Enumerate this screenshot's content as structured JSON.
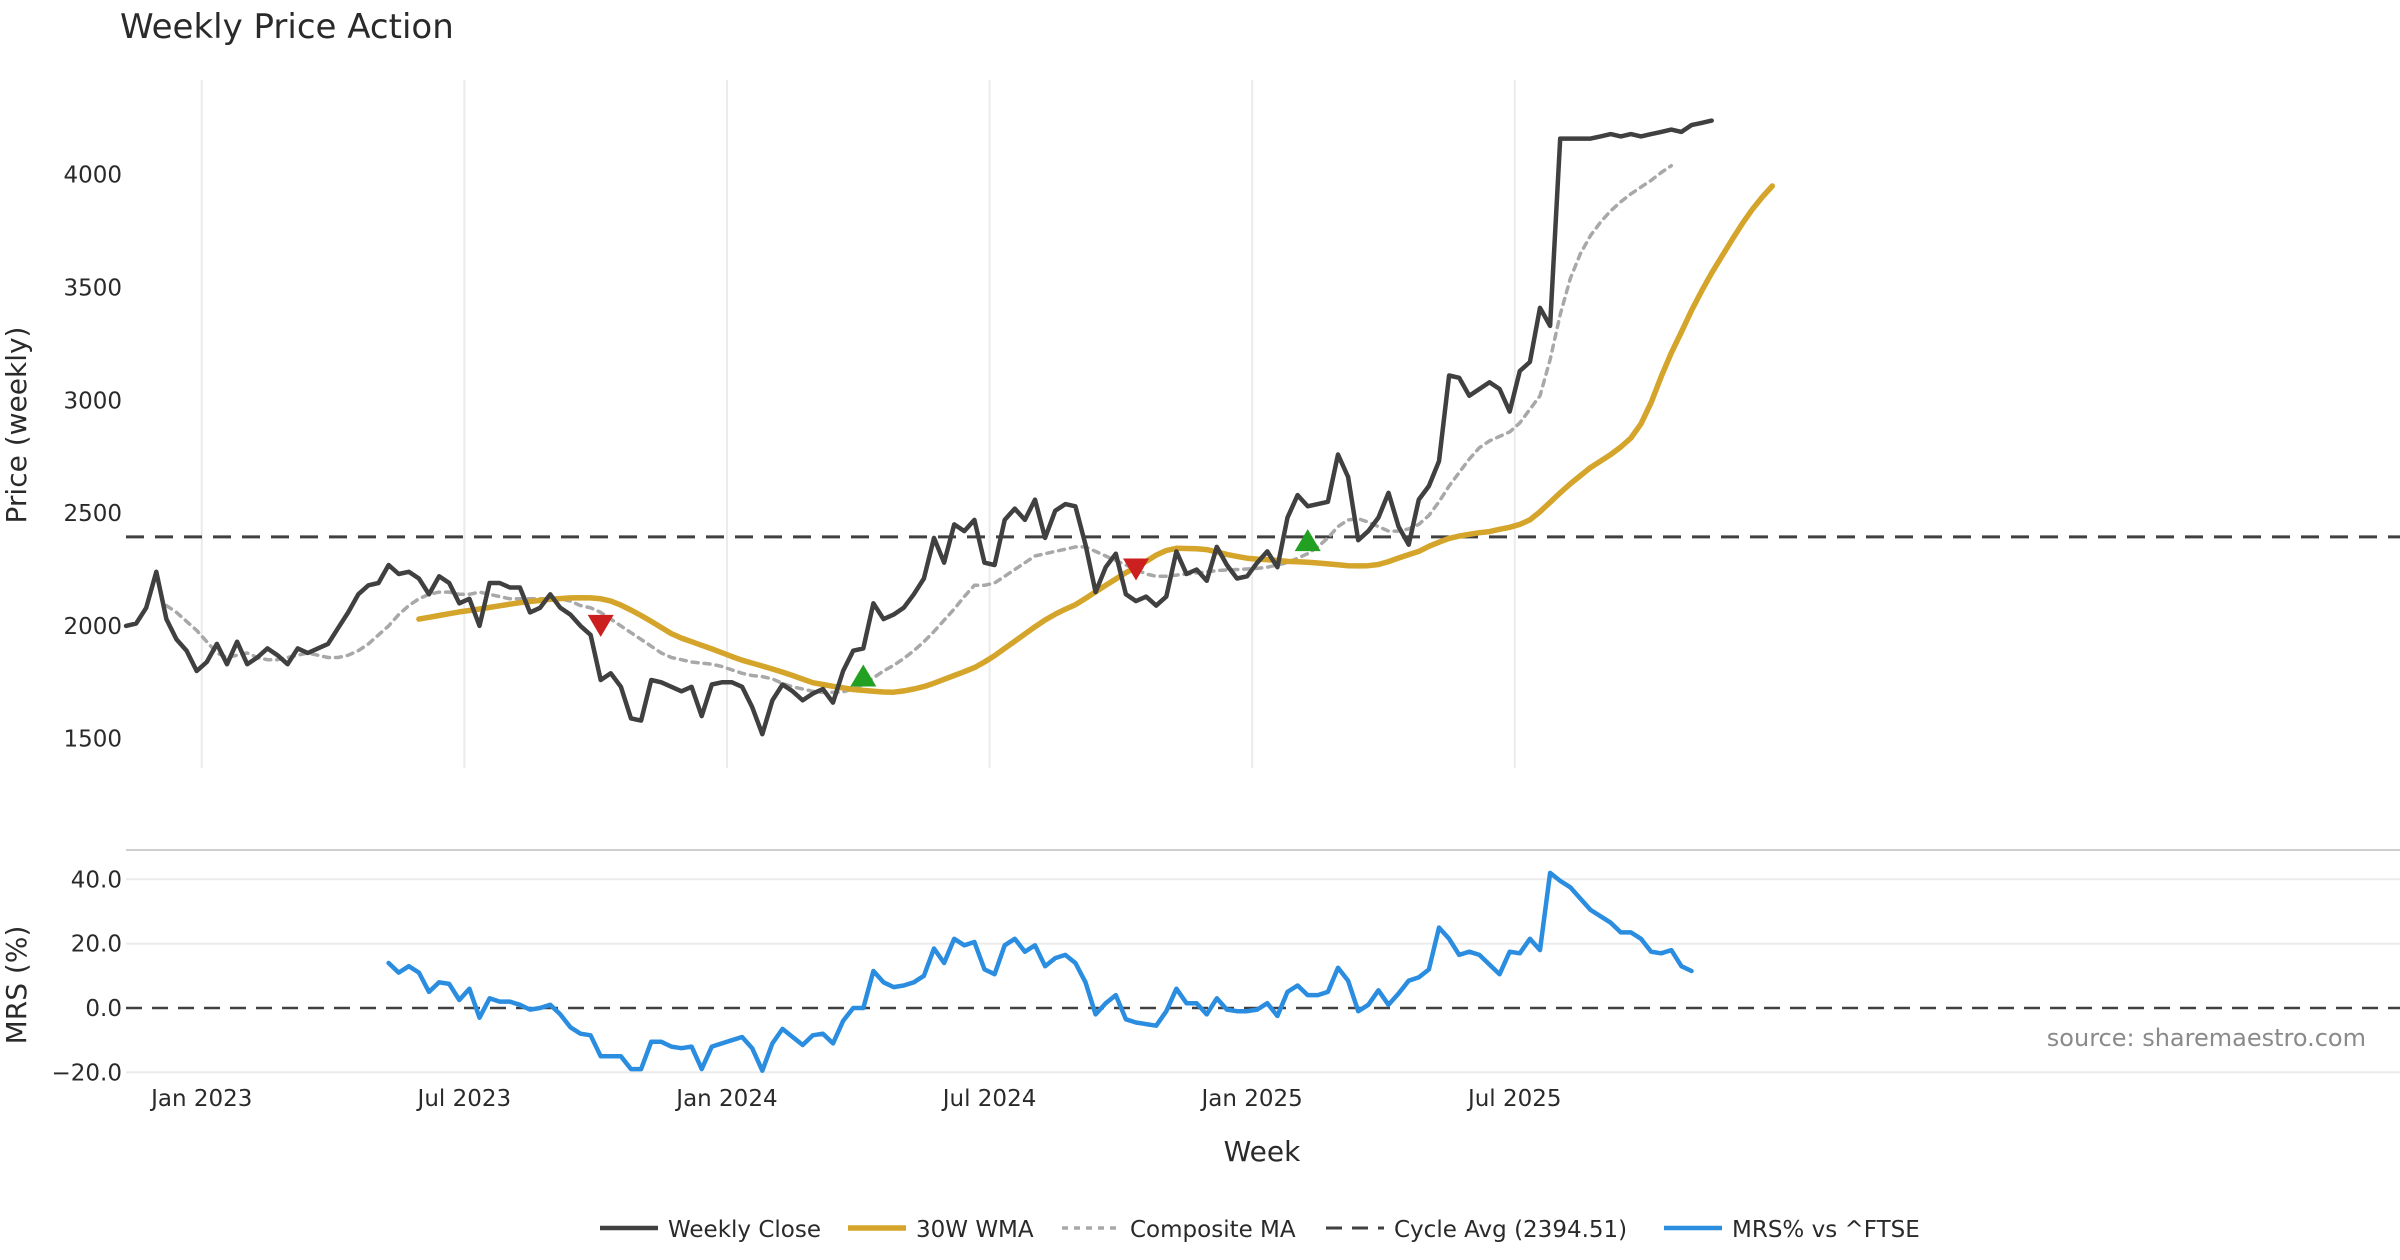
{
  "chart_data": {
    "type": "line",
    "title": "Weekly Price Action",
    "xlabel": "Week",
    "source": "source: sharemaestro.com",
    "x_ticks": [
      "Jan 2023",
      "Jul 2023",
      "Jan 2024",
      "Jul 2024",
      "Jan 2025",
      "Jul 2025"
    ],
    "price_panel": {
      "ylabel": "Price (weekly)",
      "ylim": [
        1370,
        4420
      ],
      "y_ticks": [
        "1500",
        "2000",
        "2500",
        "3000",
        "3500",
        "4000"
      ],
      "y_tick_values": [
        1500,
        2000,
        2500,
        3000,
        3500,
        4000
      ],
      "cycle_avg": 2394.51,
      "series": [
        {
          "name": "Weekly Close",
          "start_week": 0,
          "values": [
            2000,
            2010,
            2080,
            2240,
            2030,
            1940,
            1890,
            1800,
            1840,
            1920,
            1830,
            1930,
            1830,
            1860,
            1900,
            1870,
            1830,
            1900,
            1880,
            1900,
            1920,
            1990,
            2060,
            2140,
            2180,
            2190,
            2270,
            2230,
            2240,
            2210,
            2140,
            2220,
            2190,
            2100,
            2120,
            2000,
            2190,
            2190,
            2170,
            2170,
            2060,
            2080,
            2140,
            2080,
            2050,
            2000,
            1960,
            1760,
            1790,
            1730,
            1590,
            1580,
            1760,
            1750,
            1730,
            1710,
            1730,
            1600,
            1740,
            1750,
            1750,
            1730,
            1640,
            1520,
            1670,
            1740,
            1710,
            1670,
            1700,
            1720,
            1660,
            1800,
            1890,
            1900,
            2100,
            2030,
            2050,
            2080,
            2140,
            2210,
            2390,
            2280,
            2450,
            2420,
            2470,
            2280,
            2270,
            2470,
            2520,
            2470,
            2560,
            2390,
            2510,
            2540,
            2530,
            2360,
            2150,
            2260,
            2320,
            2140,
            2110,
            2130,
            2090,
            2130,
            2330,
            2230,
            2250,
            2200,
            2350,
            2270,
            2210,
            2220,
            2280,
            2330,
            2260,
            2480,
            2580,
            2530,
            2540,
            2550,
            2760,
            2660,
            2380,
            2420,
            2480,
            2590,
            2440,
            2360,
            2560,
            2620,
            2730,
            3110,
            3100,
            3020,
            3050,
            3080,
            3050,
            2950,
            3130,
            3170,
            3410,
            3330,
            4160,
            4160,
            4160,
            4160,
            4170,
            4180,
            4170,
            4180,
            4170,
            4180,
            4190,
            4200,
            4190,
            4220,
            4230,
            4240
          ]
        },
        {
          "name": "30W WMA",
          "start_week": 29,
          "values": [
            2030,
            2038,
            2046,
            2054,
            2062,
            2068,
            2075,
            2082,
            2089,
            2096,
            2103,
            2108,
            2113,
            2118,
            2121,
            2124,
            2125,
            2124,
            2120,
            2110,
            2092,
            2070,
            2046,
            2020,
            1993,
            1966,
            1946,
            1930,
            1914,
            1898,
            1881,
            1864,
            1848,
            1835,
            1822,
            1809,
            1795,
            1780,
            1764,
            1748,
            1740,
            1732,
            1725,
            1718,
            1714,
            1710,
            1707,
            1706,
            1712,
            1720,
            1731,
            1746,
            1763,
            1780,
            1797,
            1815,
            1840,
            1868,
            1900,
            1932,
            1964,
            1996,
            2026,
            2052,
            2074,
            2094,
            2122,
            2151,
            2180,
            2208,
            2236,
            2260,
            2286,
            2314,
            2334,
            2344,
            2343,
            2342,
            2338,
            2328,
            2317,
            2308,
            2300,
            2296,
            2294,
            2290,
            2286,
            2284,
            2282,
            2279,
            2275,
            2271,
            2267,
            2266,
            2267,
            2272,
            2285,
            2301,
            2316,
            2330,
            2353,
            2371,
            2388,
            2398,
            2406,
            2413,
            2418,
            2428,
            2437,
            2450,
            2470,
            2506,
            2548,
            2590,
            2630,
            2666,
            2702,
            2731,
            2760,
            2793,
            2833,
            2896,
            2990,
            3105,
            3210,
            3303,
            3398,
            3484,
            3565,
            3638,
            3711,
            3781,
            3845,
            3901,
            3950
          ]
        },
        {
          "name": "Composite MA",
          "start_week": 4,
          "values": [
            2090,
            2060,
            2020,
            1980,
            1930,
            1880,
            1860,
            1870,
            1880,
            1860,
            1850,
            1850,
            1860,
            1870,
            1880,
            1870,
            1860,
            1860,
            1870,
            1890,
            1920,
            1960,
            2000,
            2050,
            2090,
            2120,
            2140,
            2150,
            2150,
            2140,
            2140,
            2150,
            2140,
            2130,
            2120,
            2120,
            2120,
            2120,
            2120,
            2120,
            2110,
            2090,
            2080,
            2060,
            2030,
            2000,
            1970,
            1940,
            1910,
            1880,
            1860,
            1850,
            1840,
            1835,
            1830,
            1820,
            1805,
            1790,
            1780,
            1775,
            1765,
            1745,
            1730,
            1720,
            1710,
            1705,
            1705,
            1708,
            1720,
            1740,
            1770,
            1800,
            1825,
            1855,
            1890,
            1930,
            1975,
            2025,
            2075,
            2130,
            2180,
            2180,
            2190,
            2220,
            2250,
            2280,
            2310,
            2320,
            2330,
            2340,
            2350,
            2350,
            2330,
            2310,
            2290,
            2270,
            2250,
            2230,
            2220,
            2220,
            2225,
            2230,
            2235,
            2240,
            2245,
            2248,
            2250,
            2252,
            2255,
            2260,
            2270,
            2280,
            2300,
            2320,
            2350,
            2390,
            2440,
            2470,
            2475,
            2460,
            2440,
            2420,
            2420,
            2430,
            2450,
            2490,
            2550,
            2620,
            2680,
            2740,
            2790,
            2820,
            2840,
            2860,
            2900,
            2960,
            3020,
            3180,
            3380,
            3540,
            3650,
            3730,
            3790,
            3840,
            3880,
            3915,
            3945,
            3975,
            4010,
            4040
          ]
        }
      ],
      "signals": [
        {
          "type": "sell",
          "week": 47,
          "value": 2000
        },
        {
          "type": "buy",
          "week": 73,
          "value": 1780
        },
        {
          "type": "sell",
          "week": 100,
          "value": 2250
        },
        {
          "type": "buy",
          "week": 117,
          "value": 2380
        }
      ]
    },
    "mrs_panel": {
      "ylabel": "MRS (%)",
      "ylim": [
        -23,
        46
      ],
      "y_ticks": [
        "40.0",
        "20.0",
        "0.0",
        "−20.0"
      ],
      "y_tick_values": [
        40,
        20,
        0,
        -20
      ],
      "series": [
        {
          "name": "MRS% vs ^FTSE",
          "start_week": 26,
          "values": [
            14,
            11,
            13,
            11,
            5,
            8,
            7.5,
            2.5,
            6,
            -3,
            3,
            2,
            2,
            1,
            -0.5,
            0,
            1,
            -2,
            -6,
            -8,
            -8.5,
            -15,
            -15,
            -15,
            -19,
            -19,
            -10.5,
            -10.5,
            -12,
            -12.5,
            -12,
            -19,
            -12,
            -11,
            -10,
            -9,
            -12.5,
            -19.5,
            -11,
            -6.5,
            -9,
            -11.5,
            -8.5,
            -8,
            -11,
            -4,
            0,
            0,
            11.5,
            8,
            6.5,
            7,
            8,
            10,
            18.5,
            14,
            21.5,
            19.5,
            20.5,
            12,
            10.5,
            19.5,
            21.5,
            17.5,
            19.5,
            13,
            15.5,
            16.5,
            14,
            8,
            -2,
            1.5,
            4,
            -3.5,
            -4.5,
            -5,
            -5.5,
            -1,
            6,
            1.5,
            1.5,
            -2,
            3,
            -0.5,
            -1,
            -1,
            -0.5,
            1.5,
            -2.5,
            5,
            7,
            4,
            4,
            5,
            12.5,
            8.5,
            -1,
            1,
            5.5,
            1,
            4.5,
            8.5,
            9.5,
            12,
            25,
            21.5,
            16.5,
            17.5,
            16.5,
            13.5,
            10.5,
            17.5,
            17,
            21.5,
            18,
            42,
            39.5,
            37.5,
            34,
            30.5,
            28.5,
            26.5,
            23.5,
            23.5,
            21.5,
            17.5,
            17,
            18,
            13,
            11.5
          ]
        }
      ]
    },
    "legend": [
      "Weekly Close",
      "30W WMA",
      "Composite MA",
      "Cycle Avg (2394.51)",
      "MRS% vs ^FTSE"
    ],
    "colors": {
      "weekly_close": "#404040",
      "wma": "#d4a52a",
      "composite": "#a8a8a8",
      "cycle": "#404040",
      "mrs": "#2a8de0",
      "buy": "#22a022",
      "sell": "#cc1f1f",
      "grid": "#ebebeb"
    }
  }
}
